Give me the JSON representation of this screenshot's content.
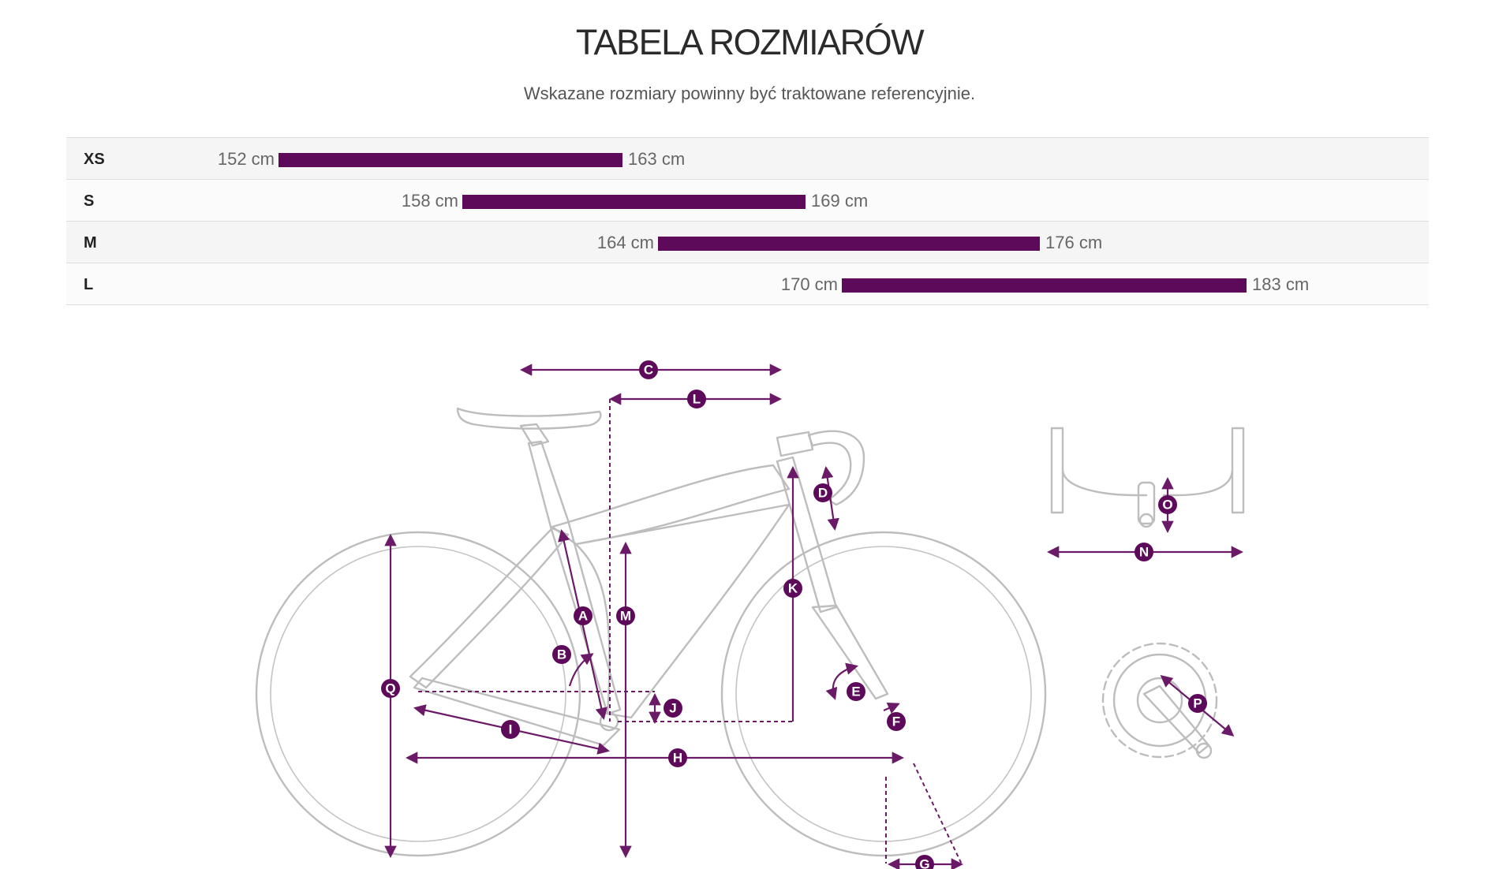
{
  "header": {
    "title": "TABELA ROZMIARÓW",
    "subtitle": "Wskazane rozmiary powinny być traktowane referencyjnie."
  },
  "sizes": [
    {
      "label": "XS",
      "min": "152 cm",
      "max": "163 cm"
    },
    {
      "label": "S",
      "min": "158 cm",
      "max": "169 cm"
    },
    {
      "label": "M",
      "min": "164 cm",
      "max": "176 cm"
    },
    {
      "label": "L",
      "min": "170 cm",
      "max": "183 cm"
    }
  ],
  "diagram": {
    "labels": {
      "a": "A",
      "b": "B",
      "c": "C",
      "d": "D",
      "e": "E",
      "f": "F",
      "g": "G",
      "h": "H",
      "i": "I",
      "j": "J",
      "k": "K",
      "l": "L",
      "m": "M",
      "n": "N",
      "o": "O",
      "p": "P",
      "q": "Q"
    }
  },
  "colors": {
    "accent": "#5e0a5b",
    "frame_line": "#bdbdbd",
    "row_odd": "#f5f5f5",
    "row_even": "#fbfbfb"
  }
}
